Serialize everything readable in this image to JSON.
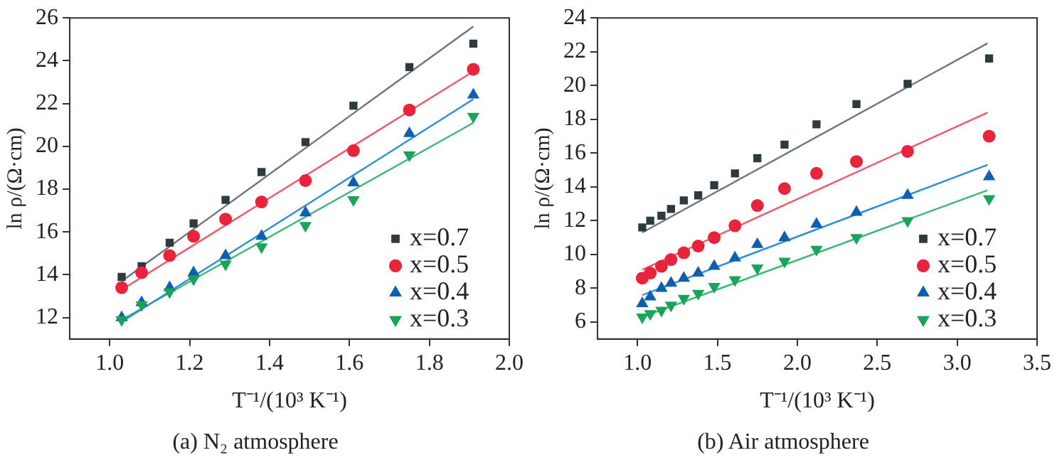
{
  "chart_data": [
    {
      "type": "scatter",
      "title": "(a) N₂ atmosphere",
      "xlabel": "T⁻¹/(10³ K⁻¹)",
      "ylabel": "ln ρ/(Ω·cm)",
      "xlim": [
        0.9,
        2.0
      ],
      "xticks": [
        {
          "value": 1.0,
          "label": "1.0"
        },
        {
          "value": 1.2,
          "label": "1.2"
        },
        {
          "value": 1.4,
          "label": "1.4"
        },
        {
          "value": 1.6,
          "label": "1.6"
        },
        {
          "value": 1.8,
          "label": "1.8"
        },
        {
          "value": 2.0,
          "label": "2.0"
        }
      ],
      "ylim": [
        11,
        26
      ],
      "yticks": [
        12,
        14,
        16,
        18,
        20,
        22,
        24,
        26
      ],
      "grid": false,
      "legend": "bottom right",
      "x": [
        1.03,
        1.08,
        1.15,
        1.21,
        1.29,
        1.38,
        1.49,
        1.61,
        1.75,
        1.91
      ],
      "series": [
        {
          "name": "x=0.7",
          "color": "#2d3a40",
          "marker": "square",
          "values": [
            13.9,
            14.4,
            15.5,
            16.4,
            17.5,
            18.8,
            20.2,
            21.9,
            23.7,
            24.8
          ]
        },
        {
          "name": "x=0.5",
          "color": "#e8243c",
          "marker": "circle",
          "values": [
            13.4,
            14.1,
            14.9,
            15.8,
            16.6,
            17.4,
            18.4,
            19.8,
            21.7,
            23.6
          ]
        },
        {
          "name": "x=0.4",
          "color": "#0f5fb0",
          "marker": "triangle",
          "values": [
            12.0,
            12.7,
            13.4,
            14.1,
            14.9,
            15.8,
            16.9,
            18.3,
            20.6,
            22.4
          ]
        },
        {
          "name": "x=0.3",
          "color": "#1aa35a",
          "marker": "triangle-down",
          "values": [
            11.9,
            12.6,
            13.2,
            13.8,
            14.5,
            15.3,
            16.3,
            17.5,
            19.6,
            21.4
          ]
        },
        {
          "type": "line",
          "color": "#6e7479",
          "marker": "none",
          "x": [
            1.03,
            1.91
          ],
          "values": [
            13.7,
            25.6
          ]
        },
        {
          "type": "line",
          "color": "#ee5a6a",
          "marker": "none",
          "x": [
            1.03,
            1.91
          ],
          "values": [
            13.3,
            23.5
          ]
        },
        {
          "type": "line",
          "color": "#2a8fd8",
          "marker": "none",
          "x": [
            1.03,
            1.91
          ],
          "values": [
            11.8,
            22.2
          ]
        },
        {
          "type": "line",
          "color": "#3db87a",
          "marker": "none",
          "x": [
            1.03,
            1.91
          ],
          "values": [
            11.9,
            21.1
          ]
        }
      ]
    },
    {
      "type": "scatter",
      "title": "(b) Air atmosphere",
      "xlabel": "T⁻¹/(10³ K⁻¹)",
      "ylabel": "ln ρ/(Ω·cm)",
      "xlim": [
        0.75,
        3.5
      ],
      "xticks": [
        {
          "value": 1.0,
          "label": "1.0"
        },
        {
          "value": 1.5,
          "label": "1.5"
        },
        {
          "value": 2.0,
          "label": "2.0"
        },
        {
          "value": 2.5,
          "label": "2.5"
        },
        {
          "value": 3.0,
          "label": "3.0"
        },
        {
          "value": 3.5,
          "label": "3.5"
        }
      ],
      "ylim": [
        5,
        24
      ],
      "yticks": [
        6,
        8,
        10,
        12,
        14,
        16,
        18,
        20,
        22,
        24
      ],
      "grid": false,
      "legend": "bottom right",
      "x": [
        1.03,
        1.08,
        1.15,
        1.21,
        1.29,
        1.38,
        1.48,
        1.61,
        1.75,
        1.92,
        2.12,
        2.37,
        2.69,
        3.2
      ],
      "series": [
        {
          "name": "x=0.7",
          "color": "#2d3a40",
          "marker": "square",
          "values": [
            11.6,
            12.0,
            12.3,
            12.7,
            13.2,
            13.5,
            14.1,
            14.8,
            15.7,
            16.5,
            17.7,
            18.9,
            20.1,
            21.6
          ]
        },
        {
          "name": "x=0.5",
          "color": "#e8243c",
          "marker": "circle",
          "values": [
            8.6,
            8.9,
            9.3,
            9.7,
            10.1,
            10.5,
            11.0,
            11.7,
            12.9,
            13.9,
            14.8,
            15.5,
            16.1,
            17.0
          ]
        },
        {
          "name": "x=0.4",
          "color": "#0f5fb0",
          "marker": "triangle",
          "values": [
            7.1,
            7.5,
            8.0,
            8.3,
            8.6,
            8.9,
            9.3,
            9.8,
            10.6,
            11.0,
            11.8,
            12.5,
            13.5,
            14.6
          ]
        },
        {
          "name": "x=0.3",
          "color": "#1aa35a",
          "marker": "triangle-down",
          "values": [
            6.3,
            6.5,
            6.7,
            7.0,
            7.4,
            7.7,
            8.1,
            8.5,
            9.2,
            9.6,
            10.3,
            11.0,
            12.0,
            13.3
          ]
        },
        {
          "type": "line",
          "color": "#6e7479",
          "marker": "none",
          "x": [
            1.03,
            3.19
          ],
          "values": [
            11.3,
            22.5
          ]
        },
        {
          "type": "line",
          "color": "#ee5a6a",
          "marker": "none",
          "x": [
            1.03,
            3.19
          ],
          "values": [
            9.1,
            18.4
          ]
        },
        {
          "type": "line",
          "color": "#2a8fd8",
          "marker": "none",
          "x": [
            1.03,
            3.19
          ],
          "values": [
            7.6,
            15.3
          ]
        },
        {
          "type": "line",
          "color": "#3db87a",
          "marker": "none",
          "x": [
            1.03,
            3.19
          ],
          "values": [
            6.3,
            13.8
          ]
        }
      ]
    }
  ]
}
